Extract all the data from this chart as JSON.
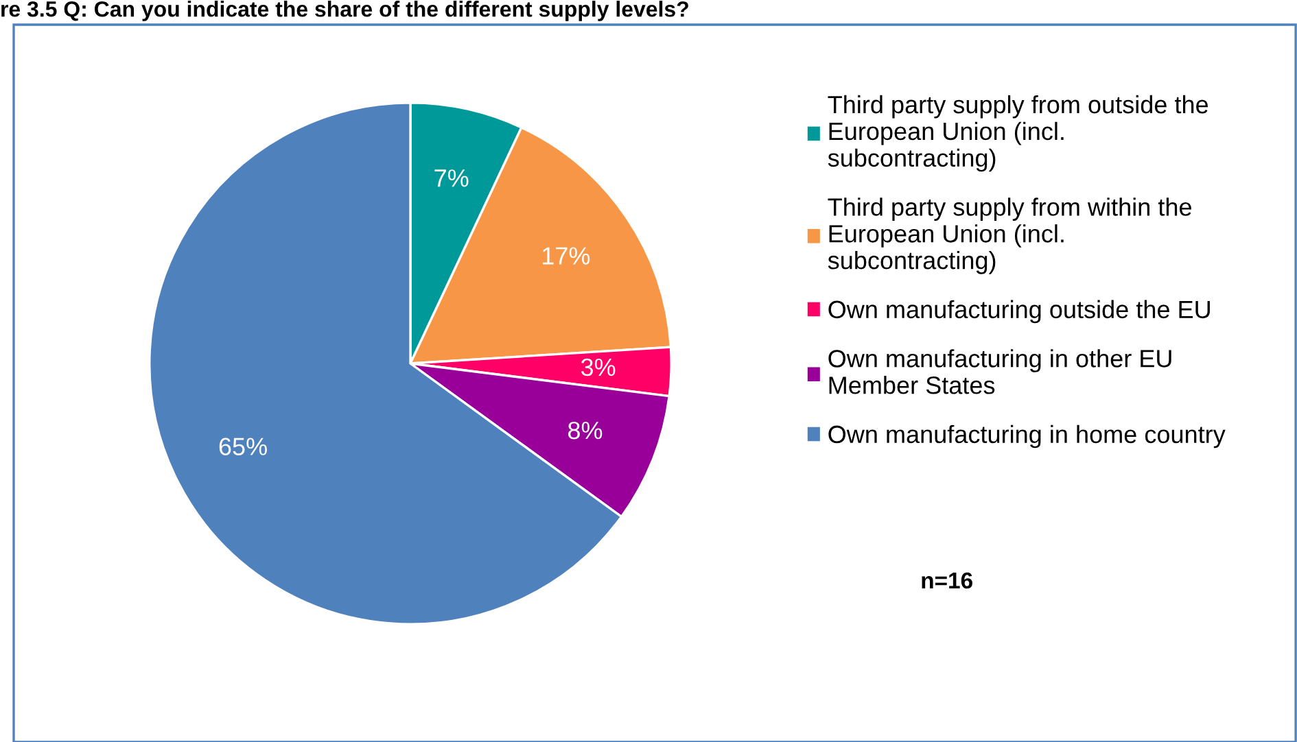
{
  "chart_data": {
    "type": "pie",
    "title": "re 3.5 Q: Can you indicate the share of the different supply levels?",
    "categories": [
      "Third party supply from outside the\nEuropean Union (incl.\nsubcontracting)",
      "Third party supply from within the\nEuropean Union (incl.\nsubcontracting)",
      "Own manufacturing outside the EU",
      "Own manufacturing in other EU\nMember States",
      "Own manufacturing in home country"
    ],
    "values": [
      7,
      17,
      3,
      8,
      65
    ],
    "colors": [
      "#009999",
      "#f79646",
      "#ff0066",
      "#990099",
      "#4f81bd"
    ],
    "value_labels": [
      "7%",
      "17%",
      "3%",
      "8%",
      "65%"
    ],
    "legend": "right",
    "annotations": [
      "n=16"
    ]
  }
}
